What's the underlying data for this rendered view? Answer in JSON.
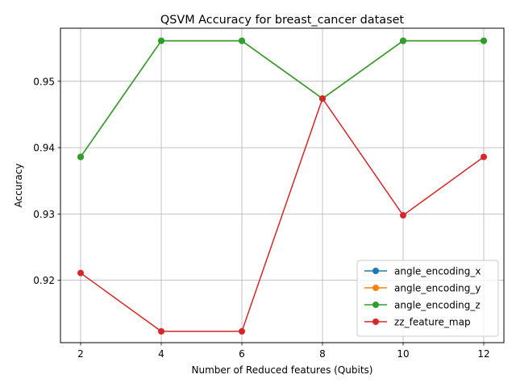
{
  "chart_data": {
    "type": "line",
    "title": "QSVM Accuracy for breast_cancer dataset",
    "xlabel": "Number of Reduced features (Qubits)",
    "ylabel": "Accuracy",
    "x": [
      2,
      4,
      6,
      8,
      10,
      12
    ],
    "xticks": [
      "2",
      "4",
      "6",
      "8",
      "10",
      "12"
    ],
    "yticks": [
      0.92,
      0.93,
      0.94,
      0.95
    ],
    "ytick_labels": [
      "0.92",
      "0.93",
      "0.94",
      "0.95"
    ],
    "xlim": [
      1.5,
      12.5
    ],
    "ylim": [
      0.9106,
      0.958
    ],
    "grid": true,
    "legend_position": "lower-right",
    "series": [
      {
        "name": "angle_encoding_x",
        "color": "#1f77b4",
        "values": [
          0.9386,
          0.9561,
          0.9561,
          0.9474,
          0.9561,
          0.9561
        ]
      },
      {
        "name": "angle_encoding_y",
        "color": "#ff7f0e",
        "values": [
          0.9386,
          0.9561,
          0.9561,
          0.9474,
          0.9561,
          0.9561
        ]
      },
      {
        "name": "angle_encoding_z",
        "color": "#2ca02c",
        "values": [
          0.9386,
          0.9561,
          0.9561,
          0.9474,
          0.9561,
          0.9561
        ]
      },
      {
        "name": "zz_feature_map",
        "color": "#d62728",
        "values": [
          0.9211,
          0.9123,
          0.9123,
          0.9474,
          0.9298,
          0.9386
        ]
      }
    ]
  }
}
